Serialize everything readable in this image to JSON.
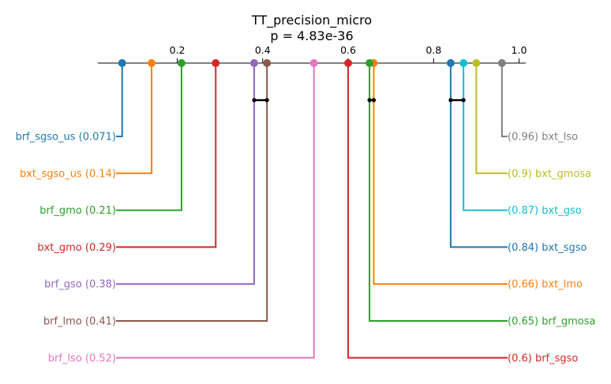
{
  "chart_data": {
    "type": "critical-difference-diagram",
    "title": "TT_precision_micro",
    "subtitle": "p = 4.83e-36",
    "axis": {
      "range": [
        0.0,
        1.0
      ],
      "ticks": [
        {
          "value": 0.2,
          "label": "0.2"
        },
        {
          "value": 0.4,
          "label": "0.4"
        },
        {
          "value": 0.6,
          "label": "0.6"
        },
        {
          "value": 0.8,
          "label": "0.8"
        },
        {
          "value": 1.0,
          "label": "1.0"
        }
      ]
    },
    "left_series": [
      {
        "name": "brf_sgso_us",
        "value": 0.071,
        "label": "brf_sgso_us (0.071)",
        "color": "#1f77b4"
      },
      {
        "name": "bxt_sgso_us",
        "value": 0.14,
        "label": "bxt_sgso_us (0.14)",
        "color": "#ff7f0e"
      },
      {
        "name": "brf_gmo",
        "value": 0.21,
        "label": "brf_gmo (0.21)",
        "color": "#2ca02c"
      },
      {
        "name": "bxt_gmo",
        "value": 0.29,
        "label": "bxt_gmo (0.29)",
        "color": "#d62728"
      },
      {
        "name": "brf_gso",
        "value": 0.38,
        "label": "brf_gso (0.38)",
        "color": "#9467bd"
      },
      {
        "name": "brf_lmo",
        "value": 0.41,
        "label": "brf_lmo (0.41)",
        "color": "#8c564b"
      },
      {
        "name": "brf_lso",
        "value": 0.52,
        "label": "brf_lso (0.52)",
        "color": "#e377c2"
      }
    ],
    "right_series": [
      {
        "name": "bxt_lso",
        "value": 0.96,
        "label": "(0.96) bxt_lso",
        "color": "#7f7f7f"
      },
      {
        "name": "bxt_gmosa",
        "value": 0.9,
        "label": "(0.9) bxt_gmosa",
        "color": "#bcbd22"
      },
      {
        "name": "bxt_gso",
        "value": 0.87,
        "label": "(0.87) bxt_gso",
        "color": "#17becf"
      },
      {
        "name": "bxt_sgso",
        "value": 0.84,
        "label": "(0.84) bxt_sgso",
        "color": "#1f77b4"
      },
      {
        "name": "bxt_lmo",
        "value": 0.66,
        "label": "(0.66) bxt_lmo",
        "color": "#ff7f0e"
      },
      {
        "name": "brf_gmosa",
        "value": 0.65,
        "label": "(0.65) brf_gmosa",
        "color": "#2ca02c"
      },
      {
        "name": "brf_sgso",
        "value": 0.6,
        "label": "(0.6) brf_sgso",
        "color": "#d62728"
      }
    ],
    "cliques": [
      {
        "from": 0.38,
        "to": 0.41
      },
      {
        "from": 0.65,
        "to": 0.66
      },
      {
        "from": 0.84,
        "to": 0.87
      }
    ]
  }
}
